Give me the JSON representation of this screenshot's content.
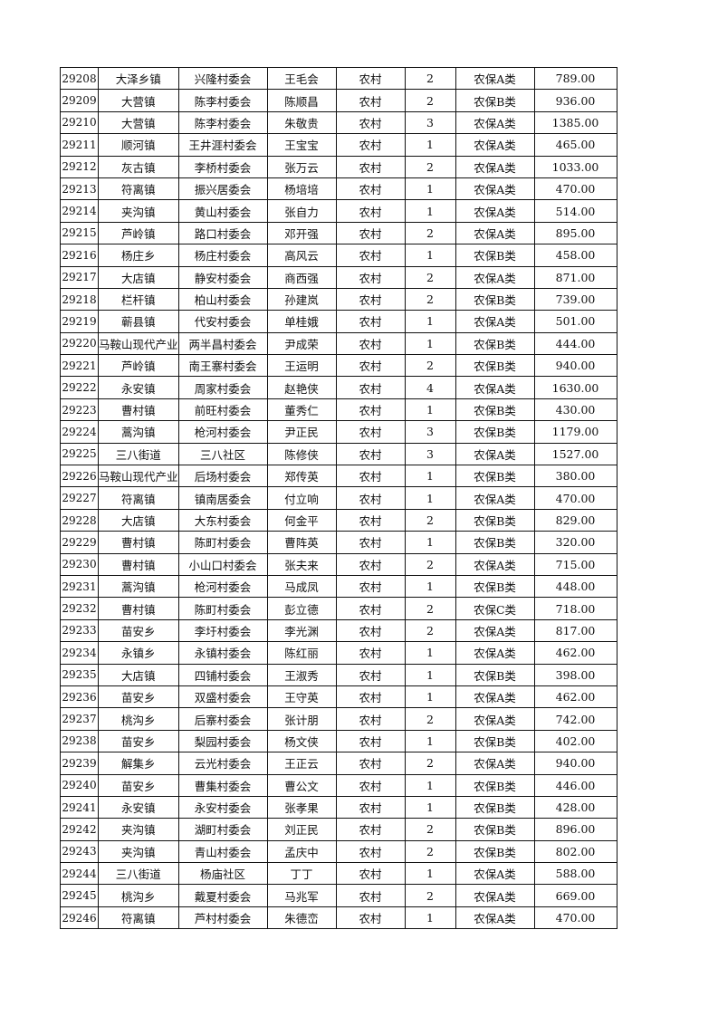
{
  "table": {
    "rows": [
      [
        "29208",
        "大泽乡镇",
        "兴隆村委会",
        "王毛会",
        "农村",
        "2",
        "农保A类",
        "789.00"
      ],
      [
        "29209",
        "大营镇",
        "陈李村委会",
        "陈顺昌",
        "农村",
        "2",
        "农保B类",
        "936.00"
      ],
      [
        "29210",
        "大营镇",
        "陈李村委会",
        "朱敬贵",
        "农村",
        "3",
        "农保A类",
        "1385.00"
      ],
      [
        "29211",
        "顺河镇",
        "王井涯村委会",
        "王宝宝",
        "农村",
        "1",
        "农保A类",
        "465.00"
      ],
      [
        "29212",
        "灰古镇",
        "李桥村委会",
        "张万云",
        "农村",
        "2",
        "农保A类",
        "1033.00"
      ],
      [
        "29213",
        "符离镇",
        "振兴居委会",
        "杨培培",
        "农村",
        "1",
        "农保A类",
        "470.00"
      ],
      [
        "29214",
        "夹沟镇",
        "黄山村委会",
        "张自力",
        "农村",
        "1",
        "农保A类",
        "514.00"
      ],
      [
        "29215",
        "芦岭镇",
        "路口村委会",
        "邓开强",
        "农村",
        "2",
        "农保A类",
        "895.00"
      ],
      [
        "29216",
        "杨庄乡",
        "杨庄村委会",
        "高风云",
        "农村",
        "1",
        "农保B类",
        "458.00"
      ],
      [
        "29217",
        "大店镇",
        "静安村委会",
        "商西强",
        "农村",
        "2",
        "农保A类",
        "871.00"
      ],
      [
        "29218",
        "栏杆镇",
        "柏山村委会",
        "孙建岚",
        "农村",
        "2",
        "农保B类",
        "739.00"
      ],
      [
        "29219",
        "蕲县镇",
        "代安村委会",
        "单桂娥",
        "农村",
        "1",
        "农保A类",
        "501.00"
      ],
      [
        "29220",
        "马鞍山现代产业",
        "两半昌村委会",
        "尹成荣",
        "农村",
        "1",
        "农保B类",
        "444.00"
      ],
      [
        "29221",
        "芦岭镇",
        "南王寨村委会",
        "王运明",
        "农村",
        "2",
        "农保B类",
        "940.00"
      ],
      [
        "29222",
        "永安镇",
        "周家村委会",
        "赵艳侠",
        "农村",
        "4",
        "农保A类",
        "1630.00"
      ],
      [
        "29223",
        "曹村镇",
        "前旺村委会",
        "董秀仁",
        "农村",
        "1",
        "农保B类",
        "430.00"
      ],
      [
        "29224",
        "蒿沟镇",
        "枪河村委会",
        "尹正民",
        "农村",
        "3",
        "农保B类",
        "1179.00"
      ],
      [
        "29225",
        "三八街道",
        "三八社区",
        "陈修侠",
        "农村",
        "3",
        "农保A类",
        "1527.00"
      ],
      [
        "29226",
        "马鞍山现代产业",
        "后场村委会",
        "郑传英",
        "农村",
        "1",
        "农保B类",
        "380.00"
      ],
      [
        "29227",
        "符离镇",
        "镇南居委会",
        "付立响",
        "农村",
        "1",
        "农保A类",
        "470.00"
      ],
      [
        "29228",
        "大店镇",
        "大东村委会",
        "何金平",
        "农村",
        "2",
        "农保B类",
        "829.00"
      ],
      [
        "29229",
        "曹村镇",
        "陈町村委会",
        "曹阵英",
        "农村",
        "1",
        "农保B类",
        "320.00"
      ],
      [
        "29230",
        "曹村镇",
        "小山口村委会",
        "张夫来",
        "农村",
        "2",
        "农保A类",
        "715.00"
      ],
      [
        "29231",
        "蒿沟镇",
        "枪河村委会",
        "马成凤",
        "农村",
        "1",
        "农保B类",
        "448.00"
      ],
      [
        "29232",
        "曹村镇",
        "陈町村委会",
        "彭立德",
        "农村",
        "2",
        "农保C类",
        "718.00"
      ],
      [
        "29233",
        "苗安乡",
        "李圩村委会",
        "李光渊",
        "农村",
        "2",
        "农保A类",
        "817.00"
      ],
      [
        "29234",
        "永镇乡",
        "永镇村委会",
        "陈红丽",
        "农村",
        "1",
        "农保A类",
        "462.00"
      ],
      [
        "29235",
        "大店镇",
        "四铺村委会",
        "王淑秀",
        "农村",
        "1",
        "农保B类",
        "398.00"
      ],
      [
        "29236",
        "苗安乡",
        "双盛村委会",
        "王守英",
        "农村",
        "1",
        "农保A类",
        "462.00"
      ],
      [
        "29237",
        "桃沟乡",
        "后寨村委会",
        "张计朋",
        "农村",
        "2",
        "农保A类",
        "742.00"
      ],
      [
        "29238",
        "苗安乡",
        "梨园村委会",
        "杨文侠",
        "农村",
        "1",
        "农保B类",
        "402.00"
      ],
      [
        "29239",
        "解集乡",
        "云光村委会",
        "王正云",
        "农村",
        "2",
        "农保A类",
        "940.00"
      ],
      [
        "29240",
        "苗安乡",
        "曹集村委会",
        "曹公文",
        "农村",
        "1",
        "农保B类",
        "446.00"
      ],
      [
        "29241",
        "永安镇",
        "永安村委会",
        "张孝果",
        "农村",
        "1",
        "农保B类",
        "428.00"
      ],
      [
        "29242",
        "夹沟镇",
        "湖町村委会",
        "刘正民",
        "农村",
        "2",
        "农保B类",
        "896.00"
      ],
      [
        "29243",
        "夹沟镇",
        "青山村委会",
        "孟庆中",
        "农村",
        "2",
        "农保B类",
        "802.00"
      ],
      [
        "29244",
        "三八街道",
        "杨庙社区",
        "丁丁",
        "农村",
        "1",
        "农保A类",
        "588.00"
      ],
      [
        "29245",
        "桃沟乡",
        "戴夏村委会",
        "马兆军",
        "农村",
        "2",
        "农保A类",
        "669.00"
      ],
      [
        "29246",
        "符离镇",
        "芦村村委会",
        "朱德峦",
        "农村",
        "1",
        "农保A类",
        "470.00"
      ]
    ]
  }
}
